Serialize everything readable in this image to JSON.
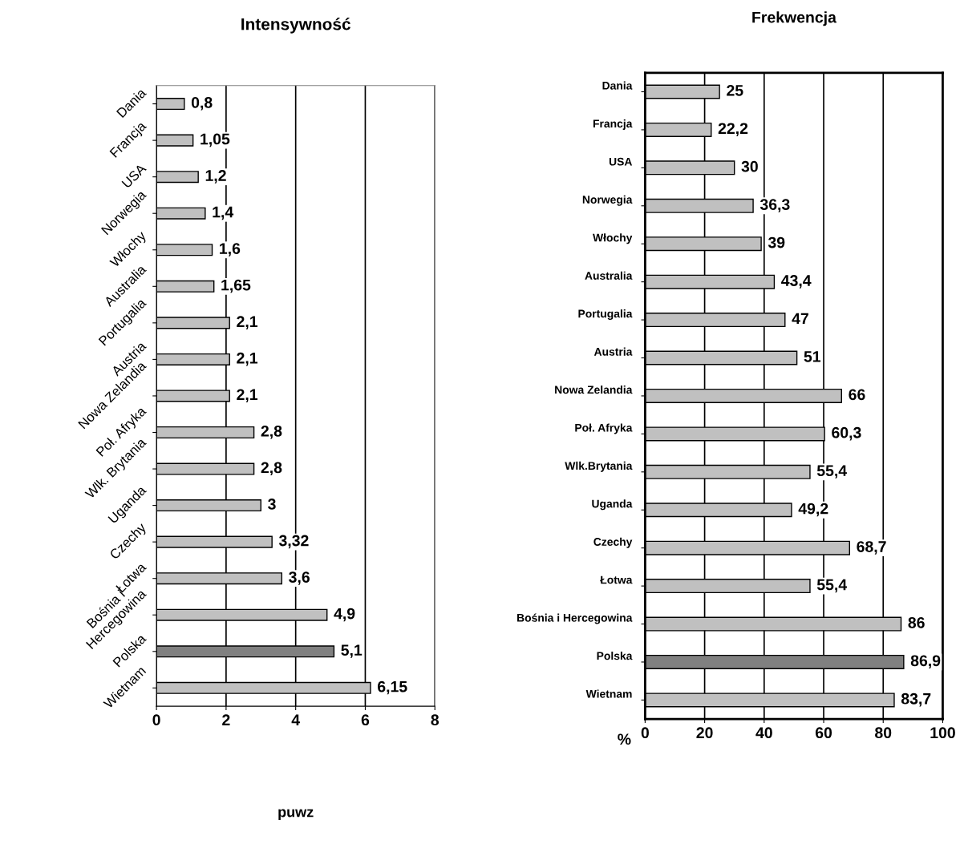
{
  "chart_data": [
    {
      "type": "bar",
      "orientation": "horizontal",
      "title": "Intensywność",
      "xlabel": "puwz",
      "categories": [
        "Dania",
        "Francja",
        "USA",
        "Norwegia",
        "Włochy",
        "Australia",
        "Portugalia",
        "Austria",
        "Nowa Zelandia",
        "Poł. Afryka",
        "Wlk. Brytania",
        "Uganda",
        "Czechy",
        "Łotwa",
        "Bośnia i Hercegowina",
        "Polska",
        "Wietnam"
      ],
      "values": [
        0.8,
        1.05,
        1.2,
        1.4,
        1.6,
        1.65,
        2.1,
        2.1,
        2.1,
        2.8,
        2.8,
        3,
        3.32,
        3.6,
        4.9,
        5.1,
        6.15
      ],
      "value_labels": [
        "0,8",
        "1,05",
        "1,2",
        "1,4",
        "1,6",
        "1,65",
        "2,1",
        "2,1",
        "2,1",
        "2,8",
        "2,8",
        "3",
        "3,32",
        "3,6",
        "4,9",
        "5,1",
        "6,15"
      ],
      "colors": [
        "#c0c0c0",
        "#c0c0c0",
        "#c0c0c0",
        "#c0c0c0",
        "#c0c0c0",
        "#c0c0c0",
        "#c0c0c0",
        "#c0c0c0",
        "#c0c0c0",
        "#c0c0c0",
        "#c0c0c0",
        "#c0c0c0",
        "#c0c0c0",
        "#c0c0c0",
        "#c0c0c0",
        "#808080",
        "#c0c0c0"
      ],
      "xlim": [
        0,
        8
      ],
      "xticks": [
        0,
        2,
        4,
        6,
        8
      ],
      "grid": "x",
      "legend": false
    },
    {
      "type": "bar",
      "orientation": "horizontal",
      "title": "Frekwencja",
      "xlabel": "%",
      "categories": [
        "Dania",
        "Francja",
        "USA",
        "Norwegia",
        "Włochy",
        "Australia",
        "Portugalia",
        "Austria",
        "Nowa Zelandia",
        "Poł. Afryka",
        "Wlk.Brytania",
        "Uganda",
        "Czechy",
        "Łotwa",
        "Bośnia i Hercegowina",
        "Polska",
        "Wietnam"
      ],
      "values": [
        25,
        22.2,
        30,
        36.3,
        39,
        43.4,
        47,
        51,
        66,
        60.3,
        55.4,
        49.2,
        68.7,
        55.4,
        86,
        86.9,
        83.7
      ],
      "value_labels": [
        "25",
        "22,2",
        "30",
        "36,3",
        "39",
        "43,4",
        "47",
        "51",
        "66",
        "60,3",
        "55,4",
        "49,2",
        "68,7",
        "55,4",
        "86",
        "86,9",
        "83,7"
      ],
      "colors": [
        "#c0c0c0",
        "#c0c0c0",
        "#c0c0c0",
        "#c0c0c0",
        "#c0c0c0",
        "#c0c0c0",
        "#c0c0c0",
        "#c0c0c0",
        "#c0c0c0",
        "#c0c0c0",
        "#c0c0c0",
        "#c0c0c0",
        "#c0c0c0",
        "#c0c0c0",
        "#c0c0c0",
        "#808080",
        "#c0c0c0"
      ],
      "xlim": [
        0,
        100
      ],
      "xticks": [
        0,
        20,
        40,
        60,
        80,
        100
      ],
      "grid": "x",
      "legend": false
    }
  ]
}
